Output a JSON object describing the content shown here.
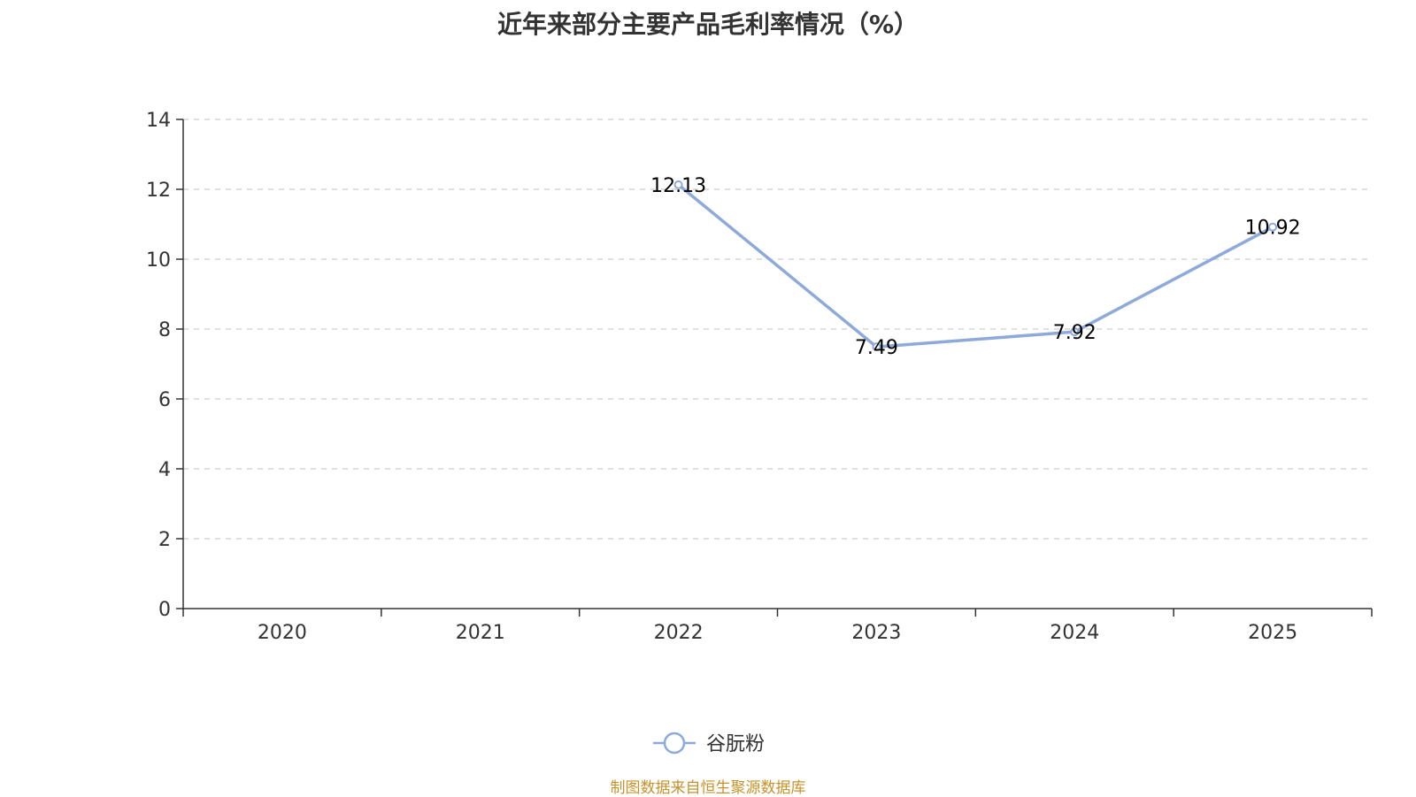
{
  "chart_data": {
    "type": "line",
    "title": "近年来部分主要产品毛利率情况（%）",
    "categories": [
      "2020",
      "2021",
      "2022",
      "2023",
      "2024",
      "2025"
    ],
    "series": [
      {
        "name": "谷朊粉",
        "values": [
          null,
          null,
          12.13,
          7.49,
          7.92,
          10.92
        ],
        "labels": [
          "",
          "",
          "12.13",
          "7.49",
          "7.92",
          "10.92"
        ],
        "color": "#8eaadb"
      }
    ],
    "y_ticks": [
      "0",
      "2",
      "4",
      "6",
      "8",
      "10",
      "12",
      "14"
    ],
    "ylim": [
      0,
      14
    ],
    "grid": true,
    "legend_position": "bottom-center"
  },
  "source": "制图数据来自恒生聚源数据库",
  "colors": {
    "axis": "#333333",
    "grid": "#cccccc",
    "source": "#c8922a"
  }
}
